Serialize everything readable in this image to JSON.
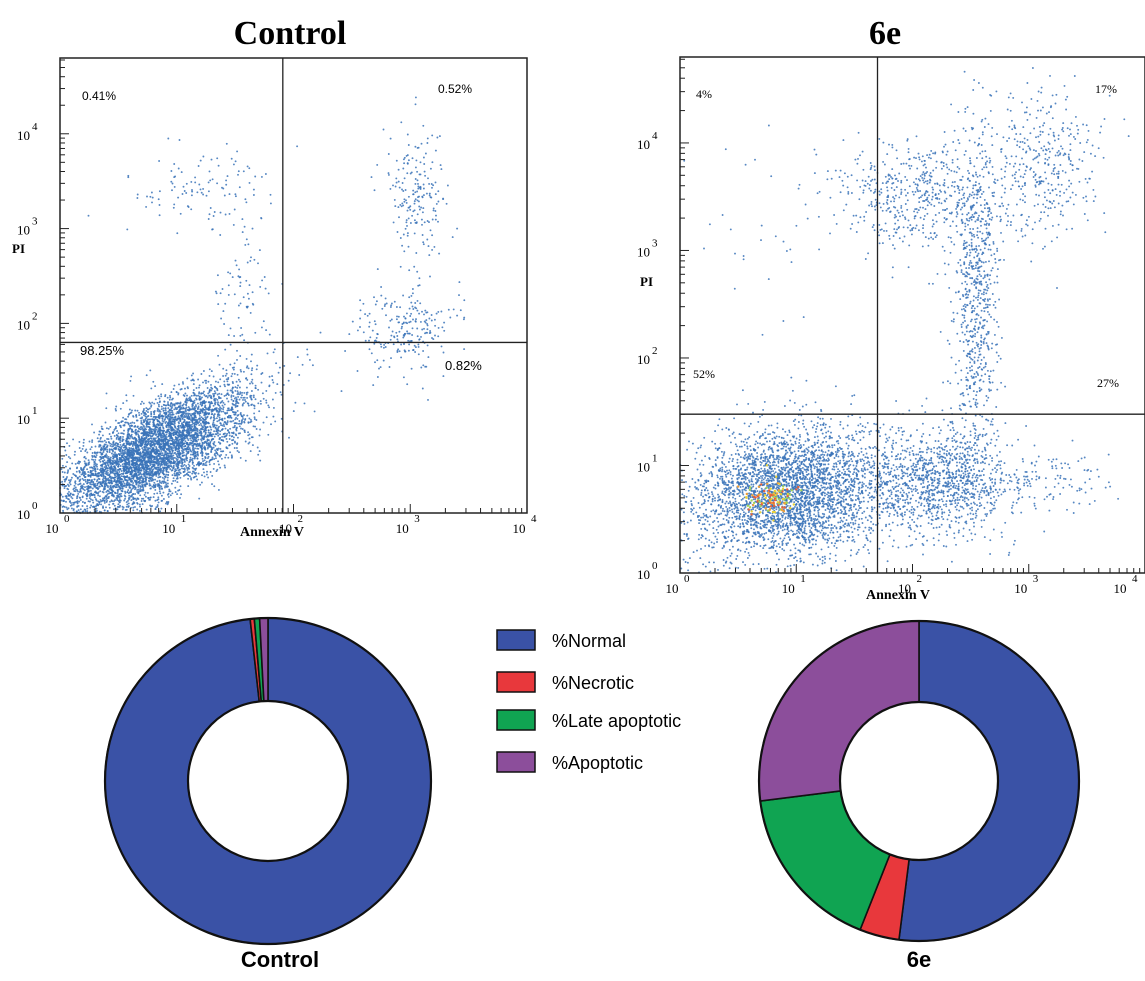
{
  "colors": {
    "dots": "#3a73b8",
    "normal": "#3a52a6",
    "necrotic": "#e8383c",
    "late_apoptotic": "#10a452",
    "apoptotic": "#8c4e9b",
    "hotspot": [
      "#e9d23a",
      "#f0a03a",
      "#e5623a",
      "#9fd35a"
    ]
  },
  "chart_data": [
    {
      "type": "scatter",
      "title": "Control",
      "xlabel": "Annexin V",
      "ylabel": "PI",
      "xscale": "log",
      "yscale": "log",
      "xlim": [
        1,
        10000
      ],
      "ylim": [
        1,
        63000
      ],
      "x_tick_values": [
        1,
        10,
        100,
        1000,
        10000
      ],
      "y_tick_values": [
        1,
        10,
        100,
        1000,
        10000
      ],
      "tick_base": "10",
      "tick_exponents": [
        "0",
        "1",
        "2",
        "3",
        "4"
      ],
      "quadrant_gate": {
        "x": 81,
        "y": 63
      },
      "quadrant_labels": {
        "upper_left": "0.41%",
        "upper_right": "0.52%",
        "lower_left": "98.25%",
        "lower_right": "0.82%"
      },
      "populations": [
        {
          "name": "normal",
          "log_center": [
            0.8,
            0.65
          ],
          "log_spread": [
            0.42,
            0.35
          ],
          "count": 5200,
          "corr": 0.72
        },
        {
          "name": "apoptotic",
          "log_center": [
            2.95,
            1.9
          ],
          "log_spread": [
            0.22,
            0.22
          ],
          "count": 230
        },
        {
          "name": "late_apoptotic",
          "log_center": [
            3.05,
            3.3
          ],
          "log_spread": [
            0.14,
            0.35
          ],
          "count": 190
        },
        {
          "name": "necrotic",
          "log_center": [
            1.2,
            3.45
          ],
          "log_spread": [
            0.32,
            0.22
          ],
          "count": 110
        },
        {
          "name": "bridge",
          "log_center": [
            1.55,
            2.3
          ],
          "log_spread": [
            0.12,
            0.42
          ],
          "count": 80
        }
      ]
    },
    {
      "type": "scatter",
      "title": "6e",
      "xlabel": "Annexin V",
      "ylabel": "PI",
      "xscale": "log",
      "yscale": "log",
      "xlim": [
        1,
        10000
      ],
      "ylim": [
        1,
        63000
      ],
      "x_tick_values": [
        1,
        10,
        100,
        1000,
        10000
      ],
      "y_tick_values": [
        1,
        10,
        100,
        1000,
        10000
      ],
      "tick_base": "10",
      "tick_exponents": [
        "0",
        "1",
        "2",
        "3",
        "4"
      ],
      "quadrant_gate": {
        "x": 50,
        "y": 30
      },
      "quadrant_labels": {
        "upper_left": "4%",
        "upper_right": "17%",
        "lower_left": "52%",
        "lower_right": "27%"
      },
      "populations": [
        {
          "name": "normal",
          "log_center": [
            0.95,
            0.75
          ],
          "log_spread": [
            0.42,
            0.3
          ],
          "count": 3400,
          "corr": 0.1
        },
        {
          "name": "apoptotic",
          "log_center": [
            2.25,
            0.85
          ],
          "log_spread": [
            0.3,
            0.25
          ],
          "count": 1100
        },
        {
          "name": "apoptotic_tail",
          "log_center": [
            3.1,
            0.85
          ],
          "log_spread": [
            0.35,
            0.15
          ],
          "count": 130
        },
        {
          "name": "late_arm",
          "log_center": [
            2.55,
            2.6
          ],
          "log_spread": [
            0.1,
            0.75
          ],
          "count": 700
        },
        {
          "name": "late_upper_left",
          "log_center": [
            2.0,
            3.5
          ],
          "log_spread": [
            0.35,
            0.25
          ],
          "count": 500
        },
        {
          "name": "late_upper_right",
          "log_center": [
            3.1,
            3.8
          ],
          "log_spread": [
            0.25,
            0.35
          ],
          "count": 380
        },
        {
          "name": "necrotic",
          "log_center": [
            0.7,
            3.2
          ],
          "log_spread": [
            0.3,
            0.5
          ],
          "count": 28
        }
      ],
      "hotspot": {
        "log_center": [
          0.8,
          0.7
        ],
        "log_spread": [
          0.12,
          0.08
        ],
        "count": 120
      }
    },
    {
      "type": "pie",
      "variant": "donut",
      "label": "Control",
      "labels": [
        "%Normal",
        "%Necrotic",
        "%Late apoptotic",
        "%Apoptotic"
      ],
      "values": [
        98.25,
        0.41,
        0.52,
        0.82
      ]
    },
    {
      "type": "pie",
      "variant": "donut",
      "label": "6e",
      "labels": [
        "%Normal",
        "%Necrotic",
        "%Late apoptotic",
        "%Apoptotic"
      ],
      "values": [
        52,
        4,
        17,
        27
      ]
    }
  ],
  "legend": {
    "items": [
      {
        "label": "%Normal",
        "color_key": "normal"
      },
      {
        "label": "%Necrotic",
        "color_key": "necrotic"
      },
      {
        "label": "%Late apoptotic",
        "color_key": "late_apoptotic"
      },
      {
        "label": "%Apoptotic",
        "color_key": "apoptotic"
      }
    ]
  }
}
